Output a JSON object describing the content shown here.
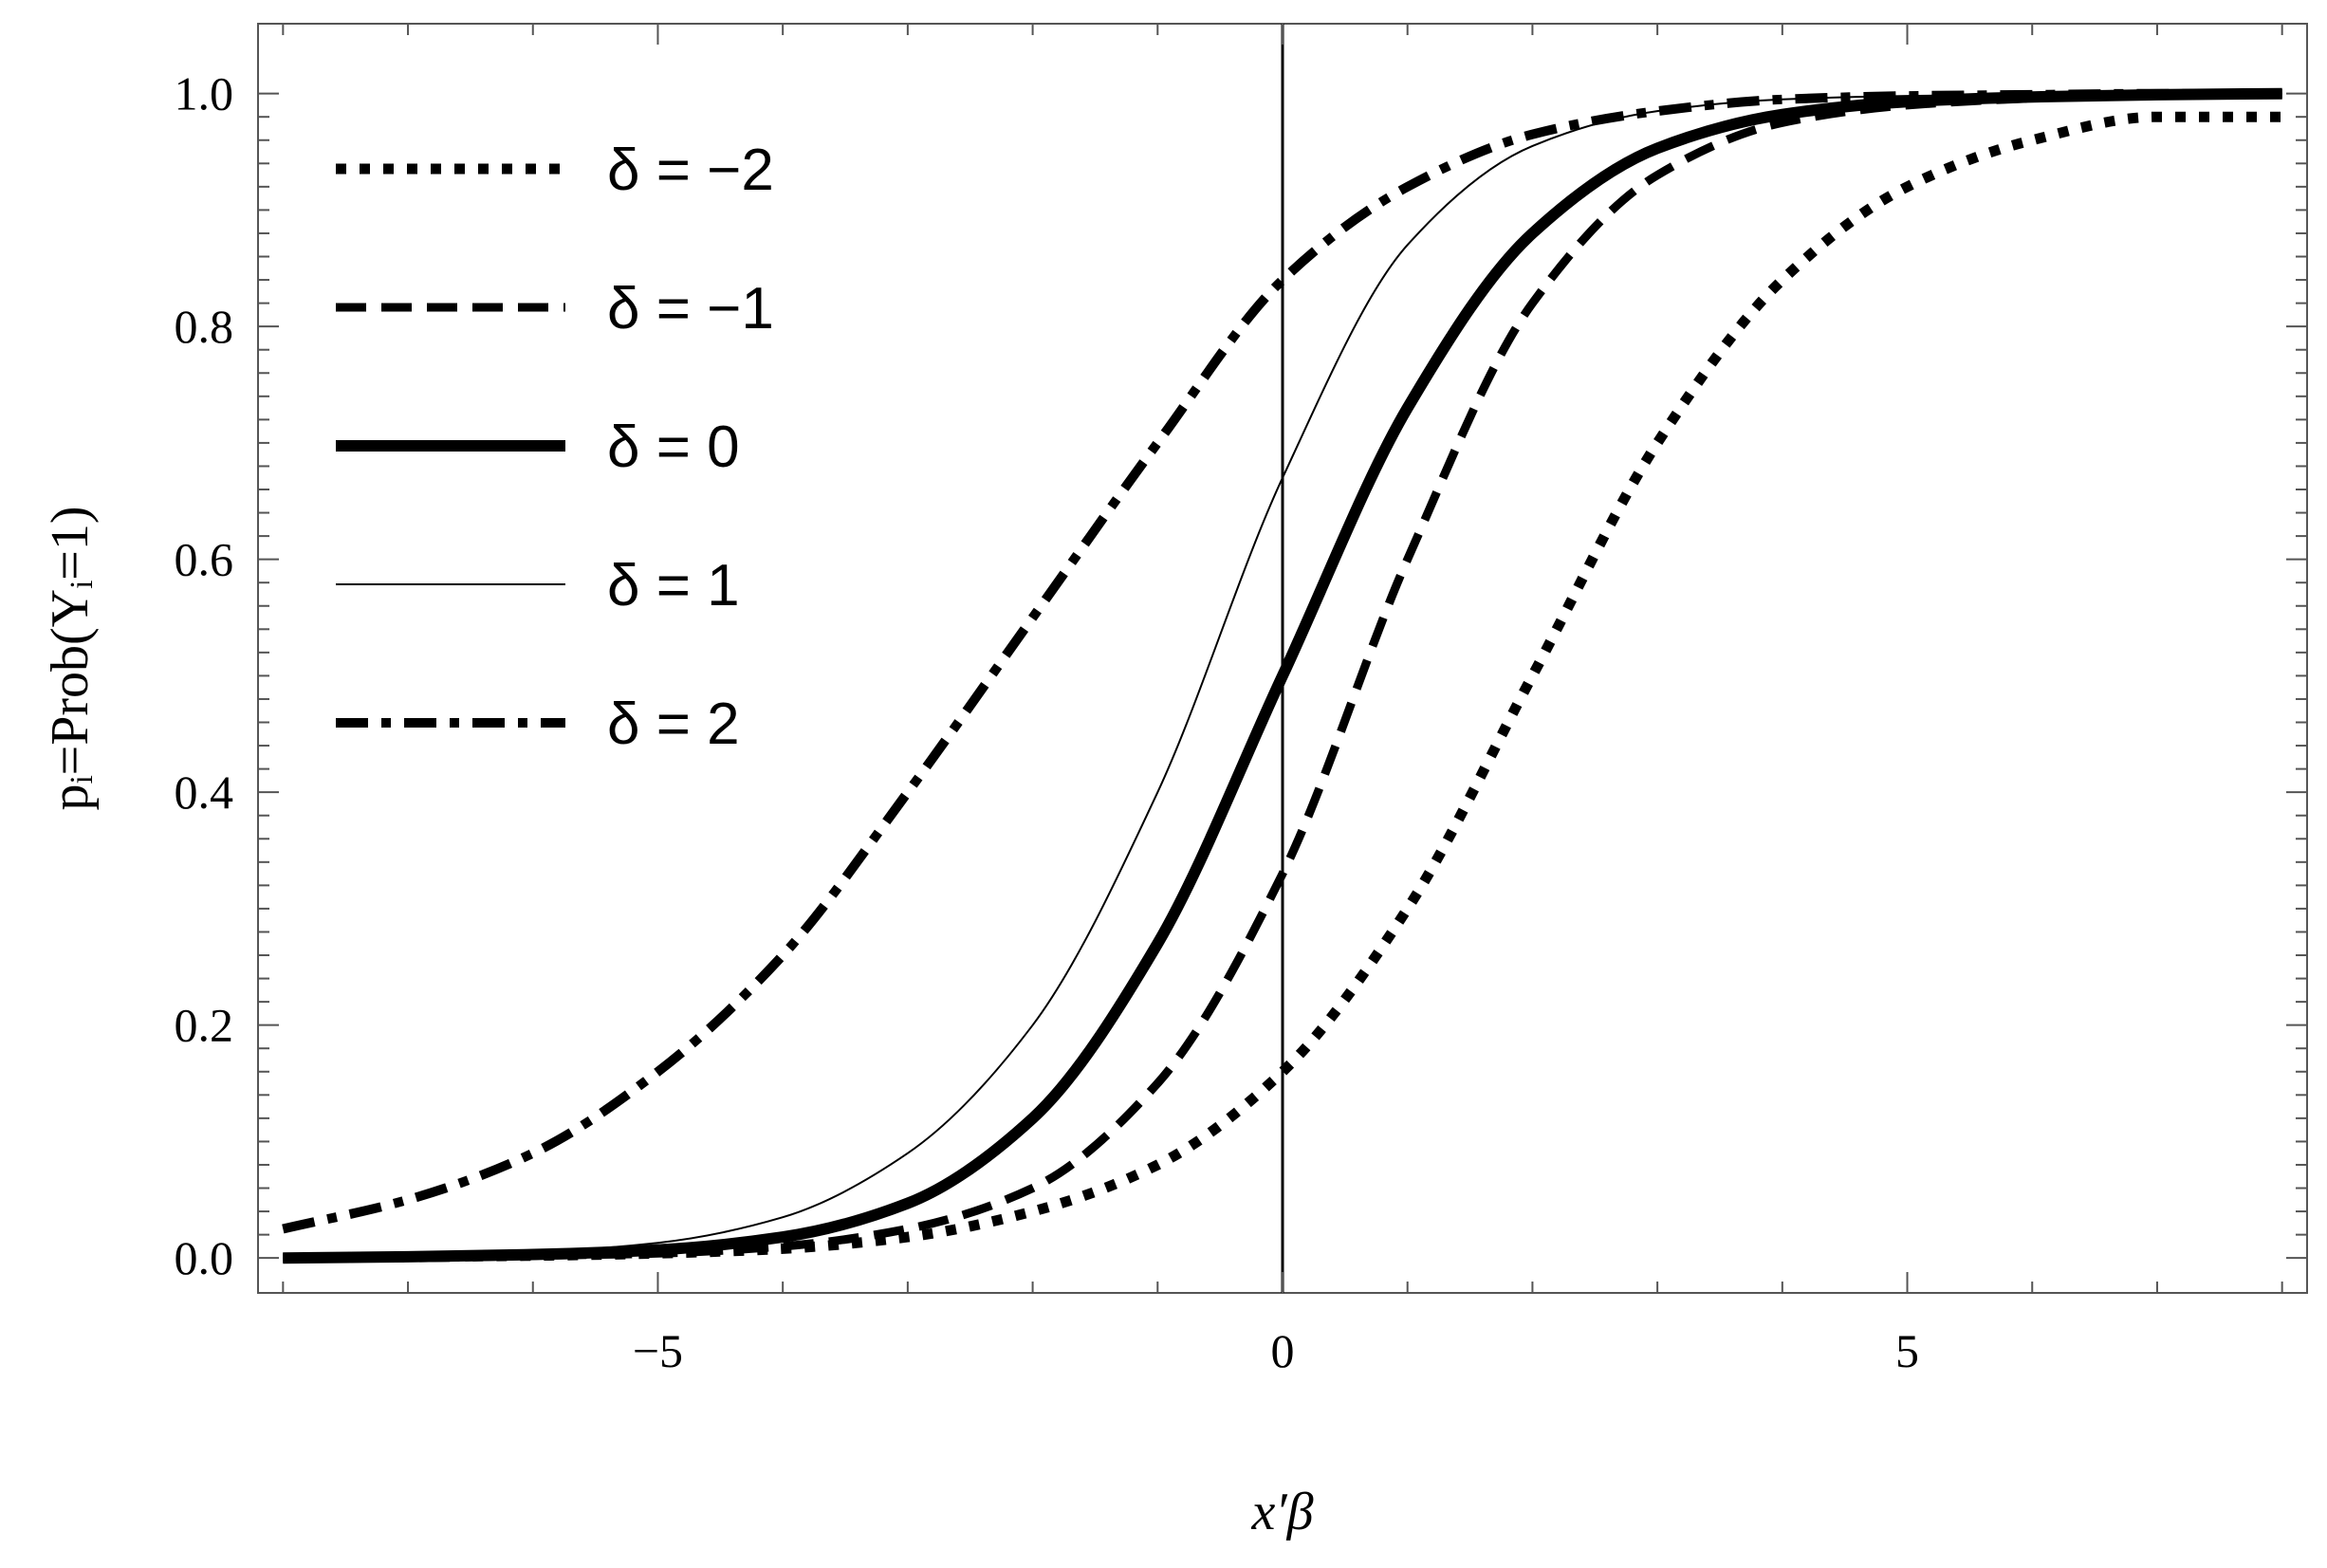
{
  "chart_data": {
    "type": "line",
    "title": "",
    "xlabel": "x′β",
    "ylabel": "pᵢ=Prob(Yᵢ=1)",
    "xlim": [
      -8.2,
      8.2
    ],
    "ylim": [
      -0.03,
      1.06
    ],
    "x_ticks": [
      -5,
      0,
      5
    ],
    "x_tick_labels": [
      "−5",
      "0",
      "5"
    ],
    "y_ticks": [
      0.0,
      0.2,
      0.4,
      0.6,
      0.8,
      1.0
    ],
    "y_tick_labels": [
      "0.0",
      "0.2",
      "0.4",
      "0.6",
      "0.8",
      "1.0"
    ],
    "grid": false,
    "frame": true,
    "vertical_line_at_x": 0,
    "legend_position": "top-left",
    "x_range": [
      -8,
      8
    ],
    "series": [
      {
        "name": "δ = −2",
        "style": "dotted",
        "x": [
          -8,
          -7,
          -6,
          -5,
          -4,
          -3,
          -2,
          -1,
          0,
          1,
          2,
          3,
          4,
          5,
          6,
          7,
          8
        ],
        "values": [
          0.0,
          0.001,
          0.002,
          0.004,
          0.008,
          0.018,
          0.04,
          0.08,
          0.16,
          0.3,
          0.5,
          0.7,
          0.84,
          0.92,
          0.96,
          0.98,
          0.98
        ]
      },
      {
        "name": "δ = −1",
        "style": "dashed",
        "x": [
          -8,
          -7,
          -6,
          -5,
          -4,
          -3,
          -2,
          -1,
          0,
          1,
          2,
          3,
          4,
          5,
          6,
          7,
          8
        ],
        "values": [
          0.0,
          0.0,
          0.002,
          0.004,
          0.01,
          0.025,
          0.06,
          0.15,
          0.33,
          0.6,
          0.82,
          0.93,
          0.975,
          0.99,
          0.996,
          1.0,
          1.0
        ]
      },
      {
        "name": "δ = 0",
        "style": "thick-solid",
        "x": [
          -8,
          -7,
          -6,
          -5,
          -4,
          -3,
          -2,
          -1,
          0,
          1,
          2,
          3,
          4,
          5,
          6,
          7,
          8
        ],
        "values": [
          0.0,
          0.001,
          0.003,
          0.007,
          0.018,
          0.047,
          0.12,
          0.27,
          0.5,
          0.73,
          0.88,
          0.953,
          0.982,
          0.993,
          0.997,
          0.999,
          1.0
        ]
      },
      {
        "name": "δ = 1",
        "style": "thin-solid",
        "x": [
          -8,
          -7,
          -6,
          -5,
          -4,
          -3,
          -2,
          -1,
          0,
          1,
          2,
          3,
          4,
          5,
          6,
          7,
          8
        ],
        "values": [
          0.0,
          0.002,
          0.005,
          0.013,
          0.035,
          0.09,
          0.2,
          0.4,
          0.67,
          0.87,
          0.955,
          0.985,
          0.995,
          0.998,
          0.999,
          1.0,
          1.0
        ]
      },
      {
        "name": "δ = 2",
        "style": "dash-dot",
        "x": [
          -8,
          -7,
          -6,
          -5,
          -4,
          -3,
          -2,
          -1,
          0,
          1,
          2,
          3,
          4,
          5,
          6,
          7,
          8
        ],
        "values": [
          0.025,
          0.05,
          0.09,
          0.16,
          0.26,
          0.4,
          0.55,
          0.7,
          0.84,
          0.92,
          0.965,
          0.985,
          0.995,
          0.998,
          0.999,
          1.0,
          1.0
        ]
      }
    ]
  }
}
